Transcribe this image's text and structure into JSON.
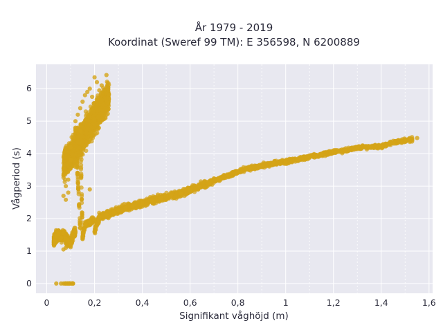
{
  "chart_data": {
    "type": "scatter",
    "title": "År 1979 - 2019",
    "subtitle": "Koordinat (Sweref 99 TM): E 356598, N 6200889",
    "xlabel": "Signifikant våghöjd (m)",
    "ylabel": "Vågperiod (s)",
    "xlim": [
      -0.045,
      1.615
    ],
    "ylim": [
      -0.3,
      6.75
    ],
    "x_ticks": [
      0,
      0.2,
      0.4,
      0.6,
      0.8,
      1,
      1.2,
      1.4,
      1.6
    ],
    "x_tick_labels": [
      "0",
      "0,2",
      "0,4",
      "0,6",
      "0,8",
      "1",
      "1,2",
      "1,4",
      "1,6"
    ],
    "x_minor_ticks": [
      0.1,
      0.3,
      0.5,
      0.7,
      0.9,
      1.1,
      1.3,
      1.5
    ],
    "y_ticks": [
      0,
      1,
      2,
      3,
      4,
      5,
      6
    ],
    "y_tick_labels": [
      "0",
      "1",
      "2",
      "3",
      "4",
      "5",
      "6"
    ],
    "grid": true,
    "colors": {
      "marker": "#d4a418",
      "plot_bg": "#e8e8f0",
      "grid": "#ffffff"
    },
    "series": [
      {
        "points": [
          [
            0.03,
            1.32
          ],
          [
            0.04,
            1.45
          ],
          [
            0.05,
            1.52
          ],
          [
            0.06,
            1.4
          ],
          [
            0.07,
            1.55
          ],
          [
            0.08,
            1.38
          ],
          [
            0.09,
            1.3
          ],
          [
            0.1,
            1.22
          ],
          [
            0.11,
            1.5
          ],
          [
            0.12,
            1.6
          ],
          [
            0.14,
            1.72
          ],
          [
            0.16,
            1.82
          ],
          [
            0.18,
            1.9
          ],
          [
            0.2,
            1.98
          ],
          [
            0.22,
            2.05
          ],
          [
            0.25,
            2.12
          ],
          [
            0.28,
            2.2
          ],
          [
            0.3,
            2.25
          ],
          [
            0.33,
            2.32
          ],
          [
            0.36,
            2.4
          ],
          [
            0.4,
            2.48
          ],
          [
            0.44,
            2.56
          ],
          [
            0.48,
            2.63
          ],
          [
            0.52,
            2.7
          ],
          [
            0.56,
            2.78
          ],
          [
            0.6,
            2.88
          ],
          [
            0.64,
            2.98
          ],
          [
            0.68,
            3.1
          ],
          [
            0.72,
            3.22
          ],
          [
            0.76,
            3.33
          ],
          [
            0.8,
            3.45
          ],
          [
            0.85,
            3.55
          ],
          [
            0.9,
            3.62
          ],
          [
            0.95,
            3.7
          ],
          [
            1.0,
            3.75
          ],
          [
            1.05,
            3.82
          ],
          [
            1.1,
            3.9
          ],
          [
            1.15,
            3.98
          ],
          [
            1.2,
            4.05
          ],
          [
            1.25,
            4.1
          ],
          [
            1.3,
            4.18
          ],
          [
            1.35,
            4.2
          ],
          [
            1.4,
            4.22
          ],
          [
            1.45,
            4.35
          ],
          [
            1.5,
            4.4
          ],
          [
            1.55,
            4.48
          ],
          [
            0.07,
            1.05
          ],
          [
            0.08,
            1.1
          ],
          [
            0.15,
            1.45
          ],
          [
            0.2,
            1.6
          ],
          [
            0.1,
            3.8
          ],
          [
            0.11,
            4.5
          ],
          [
            0.12,
            5.0
          ],
          [
            0.13,
            5.2
          ],
          [
            0.14,
            5.4
          ],
          [
            0.15,
            5.6
          ],
          [
            0.16,
            5.8
          ],
          [
            0.17,
            5.9
          ],
          [
            0.18,
            6.0
          ],
          [
            0.19,
            5.75
          ],
          [
            0.2,
            6.35
          ],
          [
            0.21,
            6.2
          ],
          [
            0.22,
            5.95
          ],
          [
            0.23,
            6.1
          ],
          [
            0.25,
            6.42
          ],
          [
            0.08,
            3.0
          ],
          [
            0.09,
            3.2
          ],
          [
            0.1,
            4.2
          ],
          [
            0.12,
            4.8
          ],
          [
            0.14,
            4.7
          ],
          [
            0.07,
            2.7
          ],
          [
            0.08,
            2.58
          ],
          [
            0.09,
            2.8
          ],
          [
            0.13,
            3.4
          ],
          [
            0.18,
            2.9
          ],
          [
            0.04,
            0
          ],
          [
            0.06,
            0
          ],
          [
            0.07,
            0
          ],
          [
            0.08,
            0
          ],
          [
            0.09,
            0
          ],
          [
            0.1,
            0
          ],
          [
            0.11,
            0
          ]
        ]
      }
    ]
  }
}
